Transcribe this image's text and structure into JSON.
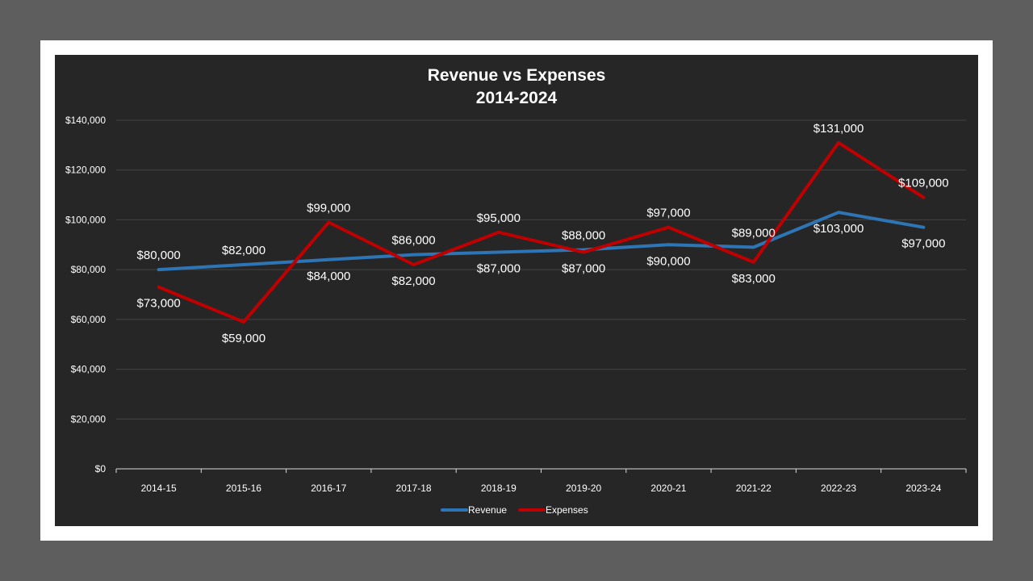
{
  "chart_data": {
    "type": "line",
    "title": "Revenue vs Expenses",
    "subtitle": "2014-2024",
    "xlabel": "",
    "ylabel": "",
    "categories": [
      "2014-15",
      "2015-16",
      "2016-17",
      "2017-18",
      "2018-19",
      "2019-20",
      "2020-21",
      "2021-22",
      "2022-23",
      "2023-24"
    ],
    "ylim": [
      0,
      140000
    ],
    "yticks": [
      "$0",
      "$20,000",
      "$40,000",
      "$60,000",
      "$80,000",
      "$100,000",
      "$120,000",
      "$140,000"
    ],
    "grid": true,
    "legend_position": "bottom",
    "series": [
      {
        "name": "Revenue",
        "color": "#2e75b6",
        "values": [
          80000,
          82000,
          84000,
          86000,
          87000,
          88000,
          90000,
          89000,
          103000,
          97000
        ],
        "labels": [
          "$80,000",
          "$82,000",
          "$84,000",
          "$86,000",
          "$87,000",
          "$88,000",
          "$90,000",
          "$89,000",
          "$103,000",
          "$97,000"
        ]
      },
      {
        "name": "Expenses",
        "color": "#c00000",
        "values": [
          73000,
          59000,
          99000,
          82000,
          95000,
          87000,
          97000,
          83000,
          131000,
          109000
        ],
        "labels": [
          "$73,000",
          "$59,000",
          "$99,000",
          "$82,000",
          "$95,000",
          "$87,000",
          "$97,000",
          "$83,000",
          "$131,000",
          "$109,000"
        ]
      }
    ]
  }
}
